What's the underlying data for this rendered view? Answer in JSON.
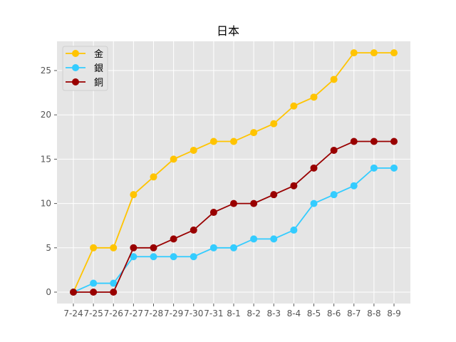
{
  "chart_data": {
    "type": "line",
    "title": "日本",
    "xlabel": "",
    "ylabel": "",
    "x": [
      "7-24",
      "7-25",
      "7-26",
      "7-27",
      "7-28",
      "7-29",
      "7-30",
      "7-31",
      "8-1",
      "8-2",
      "8-3",
      "8-4",
      "8-5",
      "8-6",
      "8-7",
      "8-8",
      "8-9"
    ],
    "ylim": [
      -1.35,
      28.35
    ],
    "yticks": [
      0,
      5,
      10,
      15,
      20,
      25
    ],
    "grid": true,
    "legend_position": "upper left",
    "series": [
      {
        "name": "金",
        "color": "#FFC400",
        "values": [
          0,
          5,
          5,
          11,
          13,
          15,
          16,
          17,
          17,
          18,
          19,
          21,
          22,
          24,
          27,
          27,
          27
        ]
      },
      {
        "name": "銀",
        "color": "#33CCFF",
        "values": [
          0,
          1,
          1,
          4,
          4,
          4,
          4,
          5,
          5,
          6,
          6,
          7,
          10,
          11,
          12,
          14,
          14
        ]
      },
      {
        "name": "銅",
        "color": "#990000",
        "values": [
          0,
          0,
          0,
          5,
          5,
          6,
          7,
          9,
          10,
          10,
          11,
          12,
          14,
          16,
          17,
          17,
          17
        ]
      }
    ]
  }
}
